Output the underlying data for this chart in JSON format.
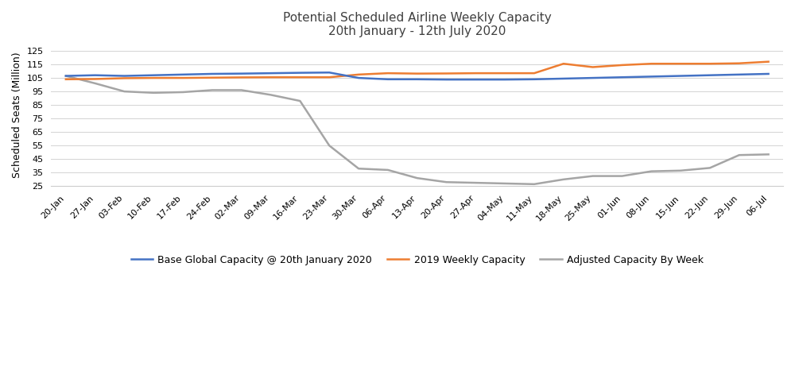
{
  "title_line1": "Potential Scheduled Airline Weekly Capacity",
  "title_line2": "20th January - 12th July 2020",
  "ylabel": "Scheduled Seats (Million)",
  "ylim": [
    25,
    130
  ],
  "yticks": [
    25,
    35,
    45,
    55,
    65,
    75,
    85,
    95,
    105,
    115,
    125
  ],
  "x_labels": [
    "20-Jan",
    "27-Jan",
    "03-Feb",
    "10-Feb",
    "17-Feb",
    "24-Feb",
    "02-Mar",
    "09-Mar",
    "16-Mar",
    "23-Mar",
    "30-Mar",
    "06-Apr",
    "13-Apr",
    "20-Apr",
    "27-Apr",
    "04-May",
    "11-May",
    "18-May",
    "25-May",
    "01-Jun",
    "08-Jun",
    "15-Jun",
    "22-Jun",
    "29-Jun",
    "06-Jul"
  ],
  "blue_line": [
    106.5,
    107.0,
    106.5,
    107.0,
    107.5,
    108.0,
    108.2,
    108.5,
    108.8,
    109.0,
    105.0,
    104.0,
    104.0,
    103.8,
    103.8,
    103.8,
    104.0,
    104.5,
    105.0,
    105.5,
    106.0,
    106.5,
    107.0,
    107.5,
    108.0
  ],
  "orange_line": [
    104.0,
    104.2,
    104.8,
    105.0,
    105.0,
    105.2,
    105.4,
    105.5,
    105.5,
    105.5,
    107.5,
    108.5,
    108.2,
    108.3,
    108.5,
    108.5,
    108.5,
    115.5,
    113.0,
    114.5,
    115.5,
    115.5,
    115.5,
    115.8,
    117.0
  ],
  "gray_line": [
    106.5,
    101.0,
    95.0,
    94.0,
    94.5,
    96.0,
    96.0,
    92.5,
    88.0,
    55.0,
    38.0,
    37.0,
    31.0,
    28.0,
    27.5,
    27.0,
    26.5,
    30.0,
    32.5,
    32.5,
    36.0,
    36.5,
    38.5,
    48.0,
    48.5
  ],
  "blue_color": "#4472C4",
  "orange_color": "#ED7D31",
  "gray_color": "#A5A5A5",
  "legend_labels": [
    "Base Global Capacity @ 20th January 2020",
    "2019 Weekly Capacity",
    "Adjusted Capacity By Week"
  ],
  "background_color": "#FFFFFF",
  "grid_color": "#D3D3D3",
  "title_fontsize": 11,
  "axis_label_fontsize": 9,
  "tick_fontsize": 8,
  "legend_fontsize": 9,
  "line_width": 1.8
}
